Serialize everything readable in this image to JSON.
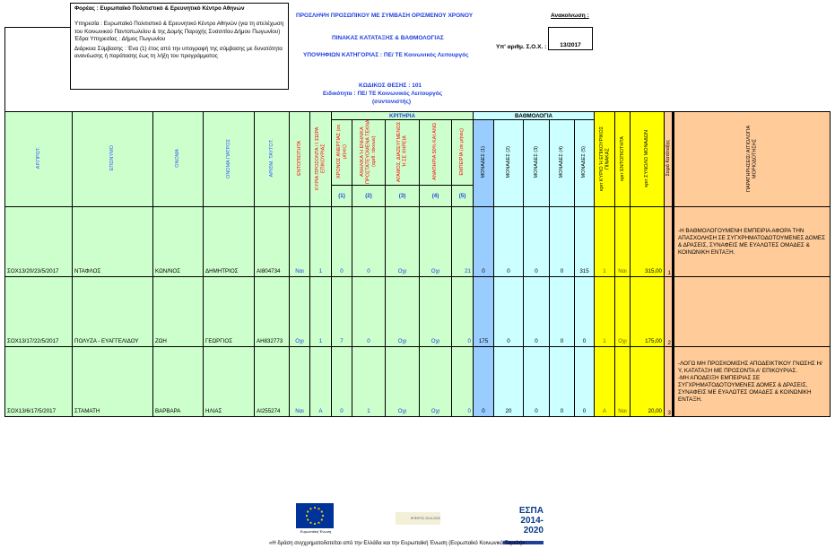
{
  "info": {
    "foreas": "Φορέας : Ευρωπαϊκό Πολιτιστικό & Ερευνητικό Κέντρο Αθηνών",
    "ypiresia": "Υπηρεσία : Ευρωπαϊκό Πολιτιστικό & Ερευνητικό Κέντρο Αθηνών (για τη στελέχωση του Κοινωνικού Παντοπωλείου & της Δομής Παροχής Συσσιτίου Δήμου Πωγωνίου)",
    "edra": "Έδρα Υπηρεσίας : Δήμος Πωγωνίου",
    "diarkeia": "Διάρκεια Σύμβασης : Ένα (1) έτος από την υπογραφή της σύμβασης με δυνατότητα ανανέωσης ή παράτασης έως τη λήξη του προγράμματος"
  },
  "header": {
    "title1": "ΠΡΟΣΛΗΨΗ ΠΡΟΣΩΠΙΚΟΥ ΜΕ ΣΥΜΒΑΣΗ ΟΡΙΣΜΕΝΟΥ ΧΡΟΝΟΥ",
    "title2": "ΠΙΝΑΚΑΣ ΚΑΤΑΤΑΞΗΣ & ΒΑΘΜΟΛΟΓΙΑΣ",
    "title3": "ΥΠΟΨΗΦΙΩΝ ΚΑΤΗΓΟΡΙΑΣ : ΠΕ/ ΤΕ Κοινωνικός Λειτουργός",
    "announcement_label": "Ανακοίνωση :",
    "soх_label": "Υπ' αριθμ. Σ.Ο.Χ. :",
    "sox_value": "13/2017",
    "code": "ΚΩΔΙΚΟΣ ΘΕΣΗΣ : 101",
    "specialty": "Ειδικότητα :   ΠΕ/ ΤΕ Κοινωνικός Λειτουργός",
    "specialty2": "(συντονιστής)"
  },
  "table": {
    "col_headers": {
      "ar_prot": "ΑΡ.ΠΡΩΤ.",
      "eponymo": "ΕΠΩΝΥΜΟ",
      "onoma": "ΟΝΟΜΑ",
      "patros": "ΟΝΟΜΑ ΠΑΤΡΟΣ",
      "taytot": "ΑΡΙΘΜ. ΤΑΥΤΟΤ.",
      "entopiotita": "ΕΝΤΟΠΙΟΤΗΤΑ",
      "kyria": "ΚΥΡΙΑ ΠΡΟΣΟΝΤΑ / Ι ΣΕΙΡΑ ΕΠΙΚΟΥΡΙΑΣ",
      "kritiria": "ΚΡΙΤΗΡΙΑ",
      "k1": "ΧΡΟΝΟΣ ΑΝΕΡΓΙΑΣ (σε μήνες)",
      "k2": "ΑΝΗΛΙΚΑ Ή ΕΝΗΛΙΚΑ ΠΡΟΣΤΑΤΕΥΟΜΕΝΑ ΤΕΚΝΑ (αριθ. τέκνων)",
      "k3": "ΑΓΑΜΟΣ, ΔΙΑΖΕΥΓΜΕΝΟΣ Ή ΣΕ ΧΗΡΕΙΑ",
      "k4": "ΑΝΑΠΗΡΙΑ 50% ΚΑΙ ΑΝΩ",
      "k5": "ΕΜΠΕΙΡΙΑ (σε μήνες)",
      "n1": "(1)",
      "n2": "(2)",
      "n3": "(3)",
      "n4": "(4)",
      "n5": "(5)",
      "vathmologia": "ΒΑΘΜΟΛΟΓΙΑ",
      "m1": "ΜΟΝΑΔΕΣ (1)",
      "m2": "ΜΟΝΑΔΕΣ (2)",
      "m3": "ΜΟΝΑΔΕΣ (3)",
      "m4": "ΜΟΝΑΔΕΣ (4)",
      "m5": "ΜΟΝΑΔΕΣ (5)",
      "kyrio_pinakas": "κριτ ΚΥΡΙΟ Ή ΕΠΙΚΟΥΡΙΚΟΣ ΠΙΝΑΚΑΣ",
      "krit_entop": "κριτ ΕΝΤΟΠΙΟΤΗΤΑ",
      "synolo": "κριτ ΣΥΝΟΛΟ ΜΟΝΑΔΩΝ",
      "seira": "Σειρά Κατάταξης",
      "paratiriseis": "ΠΑΡΑΤΗΡΗΣΕΙΣ/ ΑΙΤΙΟΛΟΓΙΑ ΜΟΡΙΟΔΟΤΗΣΗΣ"
    },
    "rows": [
      {
        "ar": "ΣΟΧ13/20/23/5/2017",
        "eponymo": "ΝΤΑΦΛΟΣ",
        "onoma": "ΚΩΝ/ΝΟΣ",
        "patros": "ΔΗΜΗΤΡΙΟΣ",
        "taut": "ΑΙ804734",
        "entop": "Ναι",
        "kyria": "1",
        "k1": "0",
        "k2": "0",
        "k3": "Οχι",
        "k4": "Οχι",
        "k5": "21",
        "m1": "0",
        "m2": "0",
        "m3": "0",
        "m4": "0",
        "m5": "315",
        "pin": "1",
        "kent": "Ναι",
        "syn": "315,00",
        "seira": "1",
        "rem": "-Η ΒΑΘΜΟΛΟΓΟΥΜΕΝΗ ΕΜΠΕΙΡΙΑ ΑΦΟΡΑ ΤΗΝ ΑΠΑΣΧΟΛΗΣΗ ΣΕ ΣΥΓΧΡΗΜΑΤΟΔΟΤΟΥΜΕΝΕΣ ΔΟΜΕΣ & ΔΡΑΣΕΙΣ, ΣΥΝΑΦΕΙΣ ΜΕ ΕΥΑΛΩΤΕΣ ΟΜΑΔΕΣ & ΚΟΙΝΩΝΙΚΗ ΕΝΤΑΞΗ."
      },
      {
        "ar": "ΣΟΧ13/17/22/5/2017",
        "eponymo": "ΠΟΛΥΖΑ - ΕΥΑΓΓΕΛΙΔΟΥ",
        "onoma": "ΖΩΗ",
        "patros": "ΓΕΩΡΓΙΟΣ",
        "taut": "ΑΗ832773",
        "entop": "Οχι",
        "kyria": "1",
        "k1": "7",
        "k2": "0",
        "k3": "Οχι",
        "k4": "Οχι",
        "k5": "0",
        "m1": "175",
        "m2": "0",
        "m3": "0",
        "m4": "0",
        "m5": "0",
        "pin": "1",
        "kent": "Οχι",
        "syn": "175,00",
        "seira": "2",
        "rem": ""
      },
      {
        "ar": "ΣΟΧ13/6/17/5/2017",
        "eponymo": "ΣΤΑΜΑΤΗ",
        "onoma": "ΒΑΡΒΑΡΑ",
        "patros": "ΗΛΙΑΣ",
        "taut": "ΑΙ255274",
        "entop": "Ναι",
        "kyria": "Α",
        "k1": "0",
        "k2": "1",
        "k3": "Οχι",
        "k4": "Οχι",
        "k5": "0",
        "m1": "0",
        "m2": "20",
        "m3": "0",
        "m4": "0",
        "m5": "0",
        "pin": "Α",
        "kent": "Ναι",
        "syn": "20,00",
        "seira": "3",
        "rem": "-ΛΟΓΩ ΜΗ ΠΡΟΣΚΟΜΙΣΗΣ ΑΠΟΔΕΙΚΤΙΚΟΥ ΓΝΩΣΗΣ Η/Υ, ΚΑΤΑΤΑΞΗ ΜΕ ΠΡΟΣΟΝΤΑ Α' ΕΠΙΚΟΥΡΙΑΣ.\n-ΜΗ ΑΠΟΔΕΙΞΗ ΕΜΠΕΙΡΙΑΣ ΣΕ ΣΥΓΧΡΗΜΑΤΟΔΟΤΟΥΜΕΝΕΣ ΔΟΜΕΣ & ΔΡΑΣΕΙΣ, ΣΥΝΑΦΕΙΣ ΜΕ ΕΥΑΛΩΤΕΣ ΟΜΑΔΕΣ & ΚΟΙΝΩΝΙΚΗ ΕΝΤΑΞΗ."
      }
    ]
  },
  "footer": {
    "eu_logo": "Ευρωπαϊκή Ένωση",
    "program_logo": "ΗΠΕΙΡΟΣ 2014-2020",
    "espa_logo": "ΕΣΠΑ 2014-2020",
    "note": "«Η δράση συγχρηματοδοτείται από την Ελλάδα και την Ευρωπαϊκή Ένωση (Ευρωπαϊκό Κοινωνικό Ταμείο)»."
  },
  "colors": {
    "green": "#ccffcc",
    "blue": "#99ccff",
    "cyan": "#ccffff",
    "yellow": "#ffff00",
    "orange": "#ffcc99",
    "text_blue": "#1f3fe0"
  }
}
